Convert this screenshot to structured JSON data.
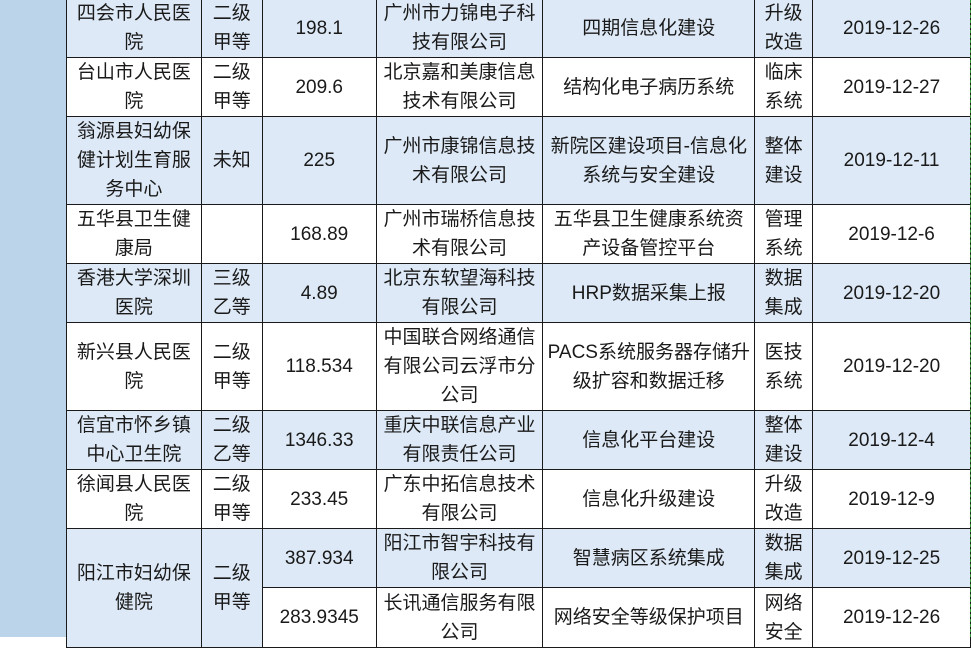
{
  "colors": {
    "row_alt": "#dde9f6",
    "strip": "#bcd4ea"
  },
  "rows": [
    {
      "hospital": "四会市人民医院",
      "level": "二级甲等",
      "amount": "198.1",
      "company": "广州市力锦电子科技有限公司",
      "project": "四期信息化建设",
      "type": "升级改造",
      "date": "2019-12-26"
    },
    {
      "hospital": "台山市人民医院",
      "level": "二级甲等",
      "amount": "209.6",
      "company": "北京嘉和美康信息技术有限公司",
      "project": "结构化电子病历系统",
      "type": "临床系统",
      "date": "2019-12-27"
    },
    {
      "hospital": "翁源县妇幼保健计划生育服务中心",
      "level": "未知",
      "amount": "225",
      "company": "广州市康锦信息技术有限公司",
      "project": "新院区建设项目-信息化系统与安全建设",
      "type": "整体建设",
      "date": "2019-12-11"
    },
    {
      "hospital": "五华县卫生健康局",
      "level": "",
      "amount": "168.89",
      "company": "广州市瑞桥信息技术有限公司",
      "project": "五华县卫生健康系统资产设备管控平台",
      "type": "管理系统",
      "date": "2019-12-6"
    },
    {
      "hospital": "香港大学深圳医院",
      "level": "三级乙等",
      "amount": "4.89",
      "company": "北京东软望海科技有限公司",
      "project": "HRP数据采集上报",
      "type": "数据集成",
      "date": "2019-12-20"
    },
    {
      "hospital": "新兴县人民医院",
      "level": "二级甲等",
      "amount": "118.534",
      "company": "中国联合网络通信有限公司云浮市分公司",
      "project": "PACS系统服务器存储升级扩容和数据迁移",
      "type": "医技系统",
      "date": "2019-12-20"
    },
    {
      "hospital": "信宜市怀乡镇中心卫生院",
      "level": "二级乙等",
      "amount": "1346.33",
      "company": "重庆中联信息产业有限责任公司",
      "project": "信息化平台建设",
      "type": "整体建设",
      "date": "2019-12-4"
    },
    {
      "hospital": "徐闻县人民医院",
      "level": "二级甲等",
      "amount": "233.45",
      "company": "广东中拓信息技术有限公司",
      "project": "信息化升级建设",
      "type": "升级改造",
      "date": "2019-12-9"
    },
    {
      "hospital": "阳江市妇幼保健院",
      "level": "二级甲等",
      "amount": "387.934",
      "company": "阳江市智宇科技有限公司",
      "project": "智慧病区系统集成",
      "type": "数据集成",
      "date": "2019-12-25"
    },
    {
      "amount": "283.9345",
      "company": "长讯通信服务有限公司",
      "project": "网络安全等级保护项目",
      "type": "网络安全",
      "date": "2019-12-26"
    }
  ]
}
